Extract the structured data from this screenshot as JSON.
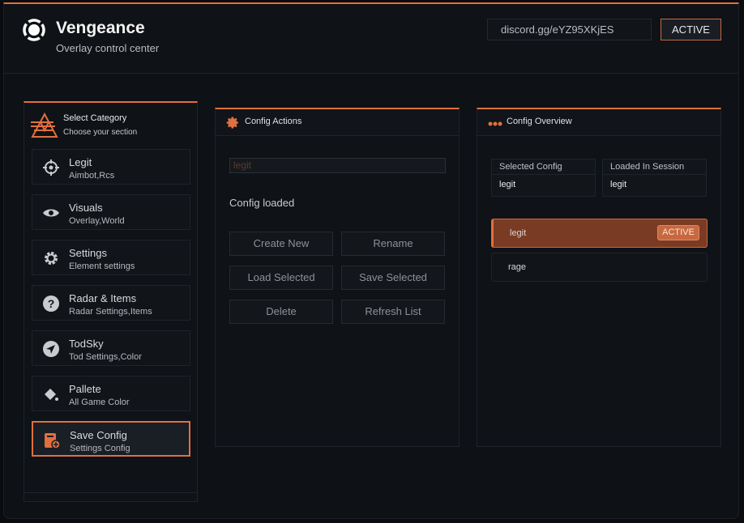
{
  "header": {
    "title": "Vengeance",
    "subtitle": "Overlay control center",
    "discord": "discord.gg/eYZ95XKjES",
    "status": "ACTIVE"
  },
  "sidebar": {
    "title": "Select Category",
    "subtitle": "Choose your section",
    "items": [
      {
        "label": "Legit",
        "sub": "Aimbot,Rcs",
        "icon": "crosshair-icon"
      },
      {
        "label": "Visuals",
        "sub": "Overlay,World",
        "icon": "eye-icon"
      },
      {
        "label": "Settings",
        "sub": "Element settings",
        "icon": "gear-icon"
      },
      {
        "label": "Radar & Items",
        "sub": "Radar Settings,Items",
        "icon": "question-icon"
      },
      {
        "label": "TodSky",
        "sub": "Tod Settings,Color",
        "icon": "send-icon"
      },
      {
        "label": "Pallete",
        "sub": "All Game Color",
        "icon": "paint-bucket-icon"
      },
      {
        "label": "Save Config",
        "sub": "Settings Config",
        "icon": "save-config-icon",
        "selected": true
      }
    ]
  },
  "actions": {
    "title": "Config Actions",
    "input_value": "legit",
    "status": "Config loaded",
    "buttons": [
      "Create New",
      "Rename",
      "Load Selected",
      "Save Selected",
      "Delete",
      "Refresh List"
    ]
  },
  "overview": {
    "title": "Config Overview",
    "selected_label": "Selected Config",
    "selected_value": "legit",
    "loaded_label": "Loaded In Session",
    "loaded_value": "legit",
    "configs": [
      {
        "name": "legit",
        "badge": "ACTIVE"
      },
      {
        "name": "rage"
      }
    ]
  },
  "colors": {
    "accent": "#e0703e",
    "background": "#0e1115"
  }
}
